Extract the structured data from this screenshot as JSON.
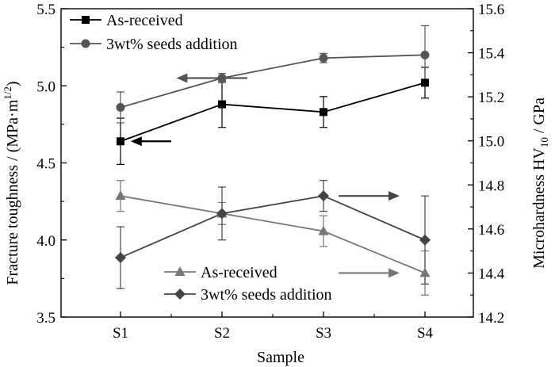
{
  "chart_data": {
    "type": "line",
    "categories": [
      "S1",
      "S2",
      "S3",
      "S4"
    ],
    "xlabel": "Sample",
    "ylabel_left_main": "Fracture toughness / (MPa·m",
    "ylabel_left_sup": "1/2",
    "ylabel_left_close": ")",
    "ylabel_right_main": "Microhardness HV",
    "ylabel_right_sub": "10",
    "ylabel_right_unit": " / GPa",
    "y_left": {
      "min": 3.5,
      "max": 5.5,
      "ticks": [
        "3.5",
        "4.0",
        "4.5",
        "5.0",
        "5.5"
      ]
    },
    "y_right": {
      "min": 14.2,
      "max": 15.6,
      "ticks": [
        "14.2",
        "14.4",
        "14.6",
        "14.8",
        "15.0",
        "15.2",
        "15.4",
        "15.6"
      ]
    },
    "series": [
      {
        "name": "As-received",
        "axis": "left",
        "marker": "square",
        "color": "#000000",
        "values": [
          4.64,
          4.88,
          4.83,
          5.02
        ],
        "errors": [
          0.15,
          0.15,
          0.1,
          0.1
        ]
      },
      {
        "name": "3wt% seeds addition",
        "axis": "left",
        "marker": "circle",
        "color": "#555555",
        "values": [
          4.86,
          5.05,
          5.18,
          5.2
        ],
        "errors": [
          0.1,
          0.03,
          0.03,
          0.19
        ]
      },
      {
        "name": "As-received",
        "axis": "right",
        "marker": "triangle",
        "color": "#777777",
        "values": [
          14.75,
          14.67,
          14.59,
          14.4
        ],
        "errors": [
          0.07,
          0.05,
          0.07,
          0.1
        ]
      },
      {
        "name": "3wt% seeds addition",
        "axis": "right",
        "marker": "diamond",
        "color": "#444444",
        "values": [
          14.47,
          14.67,
          14.75,
          14.55
        ],
        "errors": [
          0.14,
          0.12,
          0.07,
          0.2
        ]
      }
    ],
    "annotations": [
      {
        "type": "arrow",
        "direction": "left",
        "axis": "left",
        "color": "#000000",
        "x_from": 0.5,
        "x_to": 0.1,
        "y": 4.64
      },
      {
        "type": "arrow",
        "direction": "left",
        "axis": "left",
        "color": "#555555",
        "x_from": 1.25,
        "x_to": 0.55,
        "y": 5.05
      },
      {
        "type": "arrow",
        "direction": "right",
        "axis": "right",
        "color": "#444444",
        "x_from": 2.15,
        "x_to": 2.75,
        "y": 14.75
      },
      {
        "type": "arrow",
        "direction": "right",
        "axis": "right",
        "color": "#777777",
        "x_from": 2.15,
        "x_to": 2.75,
        "y": 14.4
      }
    ],
    "legend_top": {
      "placement": "top-left",
      "entries": [
        0,
        1
      ]
    },
    "legend_bottom": {
      "placement": "bottom-center",
      "entries": [
        2,
        3
      ]
    },
    "grid": false
  }
}
